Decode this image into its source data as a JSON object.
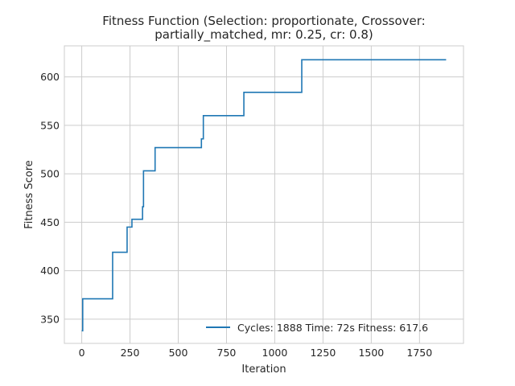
{
  "chart_data": {
    "type": "line",
    "title_line1": "Fitness Function (Selection: proportionate, Crossover:",
    "title_line2": "partially_matched, mr: 0.25, cr: 0.8)",
    "xlabel": "Iteration",
    "ylabel": "Fitness Score",
    "xlim": [
      -90,
      1978
    ],
    "ylim": [
      325,
      632
    ],
    "x_ticks": [
      0,
      250,
      500,
      750,
      1000,
      1250,
      1500,
      1750
    ],
    "y_ticks": [
      350,
      400,
      450,
      500,
      550,
      600
    ],
    "grid": true,
    "legend_position": "lower-right",
    "series": [
      {
        "name": "Cycles: 1888 Time: 72s Fitness: 617.6",
        "color": "#1f77b4",
        "step": "post",
        "x": [
          0,
          5,
          160,
          235,
          260,
          315,
          320,
          380,
          620,
          630,
          840,
          1140,
          1888
        ],
        "y": [
          338,
          371,
          419,
          445,
          453,
          466,
          503,
          527,
          536,
          560,
          584,
          617.6,
          617.6
        ]
      }
    ]
  }
}
